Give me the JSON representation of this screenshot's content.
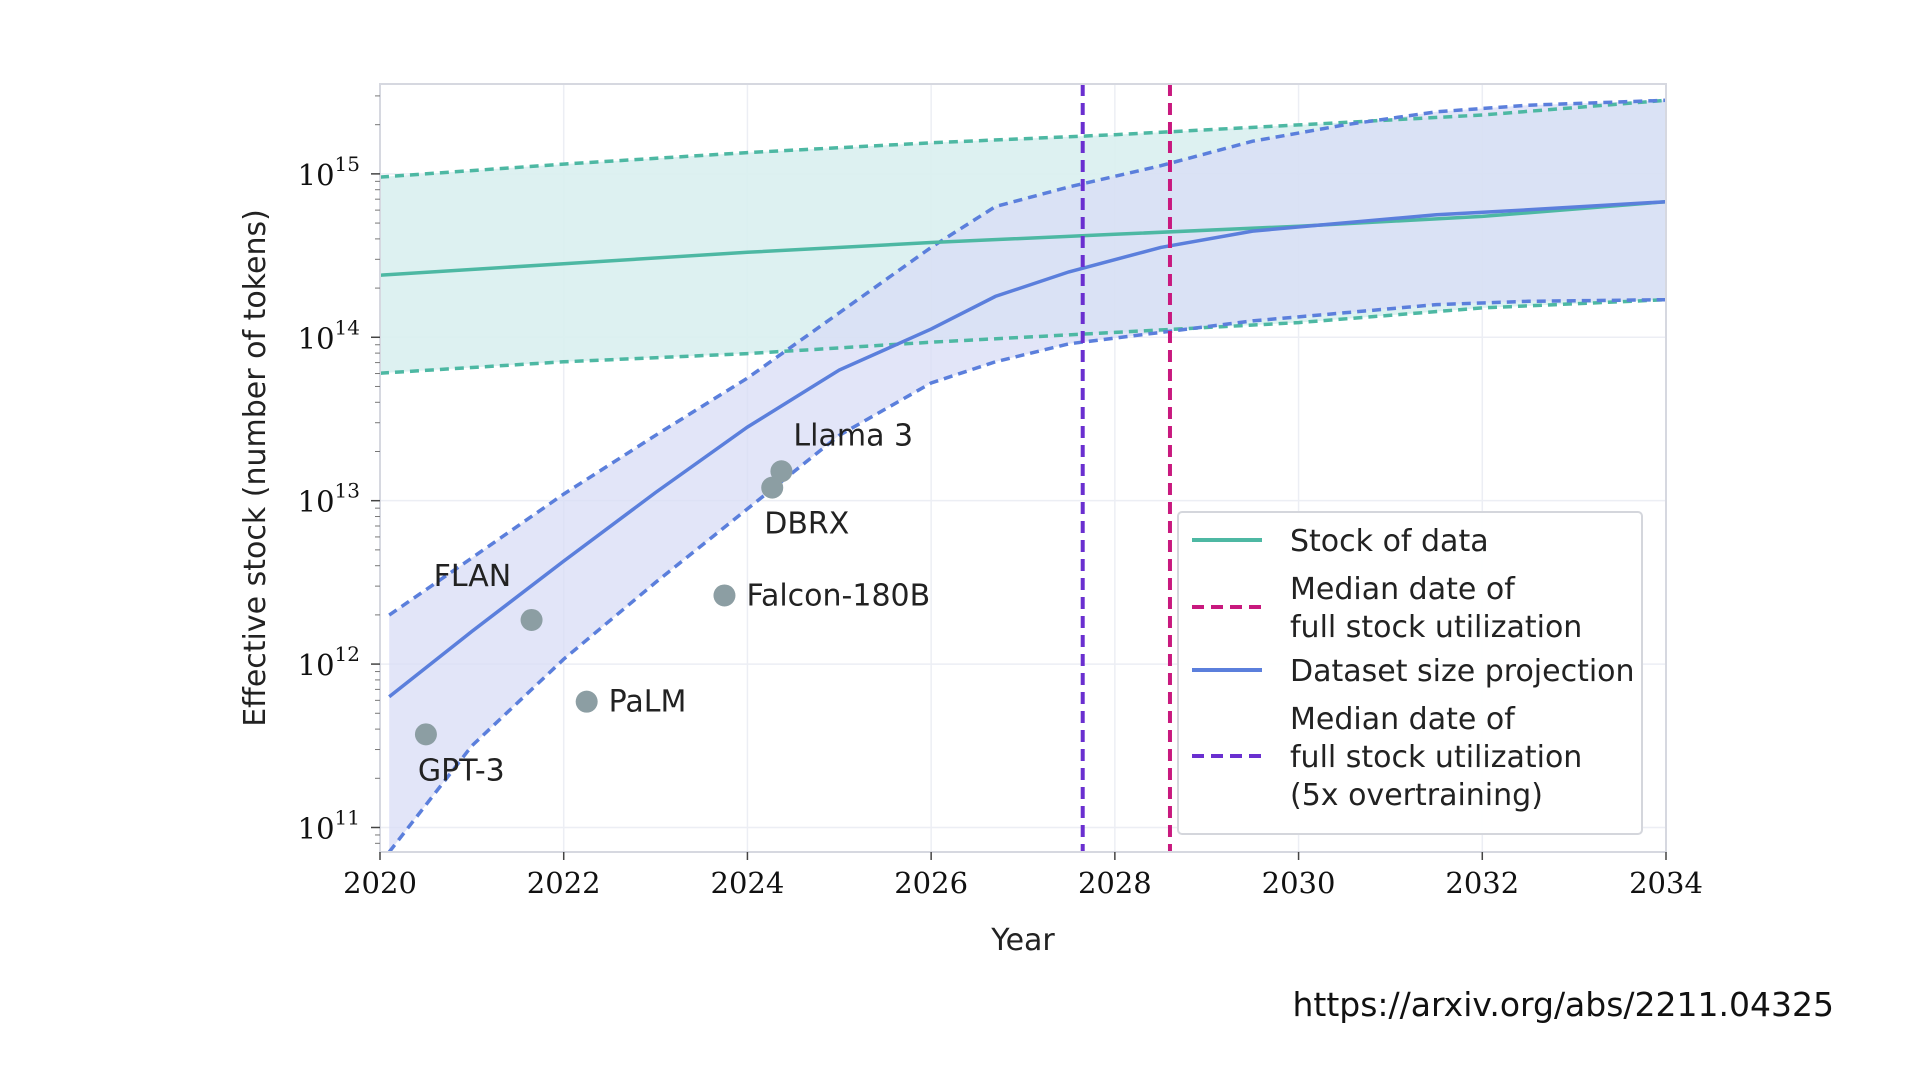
{
  "chart_data": {
    "type": "line",
    "xlabel": "Year",
    "ylabel": "Effective stock (number of tokens)",
    "xlim": [
      2020,
      2034
    ],
    "ylim_log10": [
      10.85,
      15.55
    ],
    "y_scale": "log",
    "x_ticks": [
      2020,
      2022,
      2024,
      2026,
      2028,
      2030,
      2032,
      2034
    ],
    "y_ticks": [
      {
        "exp": 11,
        "base": "10",
        "power": "11"
      },
      {
        "exp": 12,
        "base": "10",
        "power": "12"
      },
      {
        "exp": 13,
        "base": "10",
        "power": "13"
      },
      {
        "exp": 14,
        "base": "10",
        "power": "14"
      },
      {
        "exp": 15,
        "base": "10",
        "power": "15"
      }
    ],
    "grid": true,
    "legend_position": "lower-right",
    "colors": {
      "stock": "#4db8a3",
      "stock_band": "#d9efef",
      "projection": "#5b7fdc",
      "projection_band": "#d8dcf6",
      "overlap_band": "#c6d9ef",
      "median_full": "#c8197e",
      "median_5x": "#6a2fd0",
      "points": "#8c9ea3"
    },
    "series": [
      {
        "name": "Stock of data",
        "x": [
          2020,
          2022,
          2024,
          2026,
          2028,
          2030,
          2032,
          2034
        ],
        "median_log10": [
          14.38,
          14.45,
          14.52,
          14.58,
          14.63,
          14.68,
          14.74,
          14.83
        ],
        "low_log10": [
          13.78,
          13.85,
          13.9,
          13.97,
          14.03,
          14.09,
          14.18,
          14.23
        ],
        "high_log10": [
          14.98,
          15.06,
          15.13,
          15.19,
          15.24,
          15.3,
          15.36,
          15.45
        ]
      },
      {
        "name": "Dataset size projection",
        "x": [
          2020.1,
          2021,
          2022,
          2023,
          2024,
          2025,
          2026,
          2026.7,
          2027.5,
          2028.5,
          2029.5,
          2030.5,
          2031.5,
          2032.5,
          2034
        ],
        "median_log10": [
          11.8,
          12.2,
          12.63,
          13.05,
          13.45,
          13.8,
          14.05,
          14.25,
          14.4,
          14.55,
          14.65,
          14.7,
          14.75,
          14.78,
          14.83
        ],
        "low_log10": [
          10.85,
          11.5,
          12.03,
          12.5,
          12.95,
          13.4,
          13.72,
          13.85,
          13.96,
          14.03,
          14.1,
          14.15,
          14.2,
          14.22,
          14.23
        ],
        "high_log10": [
          12.3,
          12.65,
          13.04,
          13.4,
          13.75,
          14.15,
          14.55,
          14.8,
          14.92,
          15.05,
          15.2,
          15.3,
          15.38,
          15.42,
          15.45
        ]
      }
    ],
    "vertical_lines": [
      {
        "name": "Median date of full stock utilization (5x overtraining)",
        "x": 2027.65,
        "style": "dashed",
        "color_key": "median_5x"
      },
      {
        "name": "Median date of full stock utilization",
        "x": 2028.6,
        "style": "dashed",
        "color_key": "median_full"
      }
    ],
    "points": [
      {
        "label": "GPT-3",
        "x": 2020.5,
        "y_log10": 11.57,
        "label_pos": "below"
      },
      {
        "label": "FLAN",
        "x": 2021.65,
        "y_log10": 12.27,
        "label_pos": "above-left"
      },
      {
        "label": "PaLM",
        "x": 2022.25,
        "y_log10": 11.77,
        "label_pos": "right"
      },
      {
        "label": "Falcon-180B",
        "x": 2023.75,
        "y_log10": 12.42,
        "label_pos": "right"
      },
      {
        "label": "DBRX",
        "x": 2024.27,
        "y_log10": 13.08,
        "label_pos": "below"
      },
      {
        "label": "Llama 3",
        "x": 2024.37,
        "y_log10": 13.18,
        "label_pos": "above"
      }
    ],
    "legend": [
      {
        "lines": [
          "Stock of data"
        ],
        "style": "solid",
        "color_key": "stock"
      },
      {
        "lines": [
          "Median date of",
          "full stock utilization"
        ],
        "style": "dashed",
        "color_key": "median_full"
      },
      {
        "lines": [
          "Dataset size projection"
        ],
        "style": "solid",
        "color_key": "projection"
      },
      {
        "lines": [
          "Median date of",
          "full stock utilization",
          "(5x overtraining)"
        ],
        "style": "dashed",
        "color_key": "median_5x"
      }
    ]
  },
  "source": {
    "url": "https://arxiv.org/abs/2211.04325"
  }
}
